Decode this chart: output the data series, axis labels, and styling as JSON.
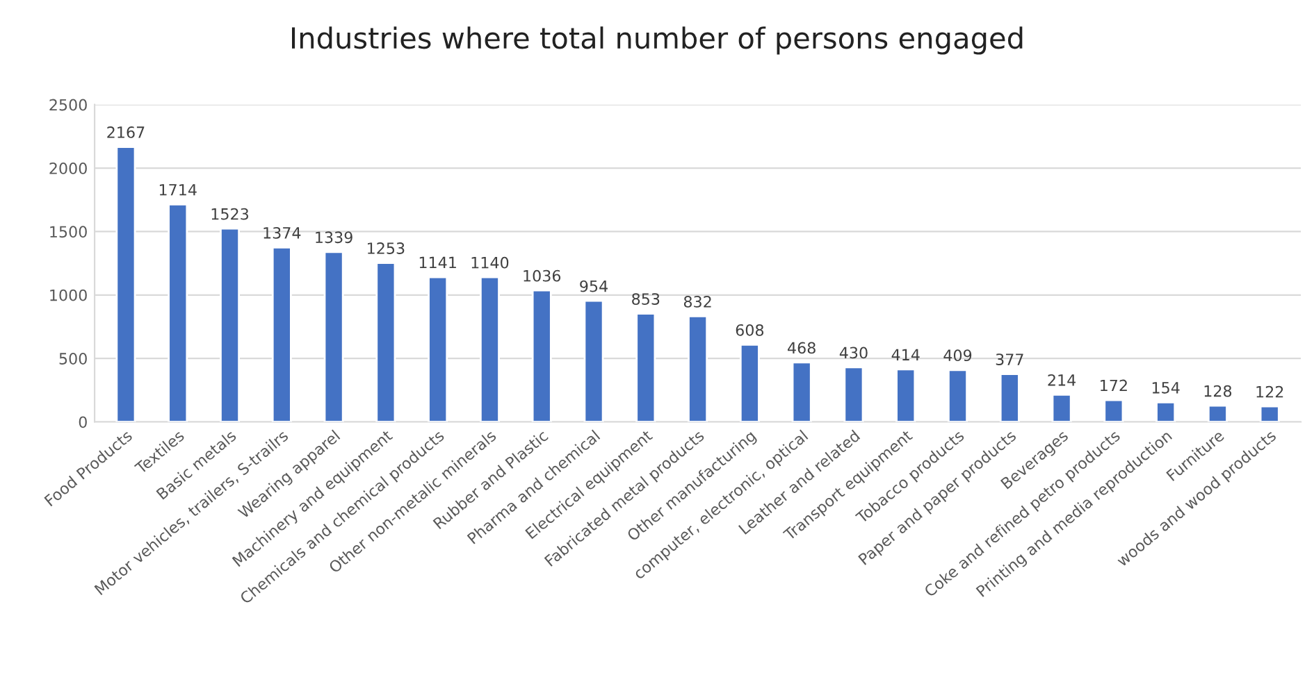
{
  "chart_data": {
    "type": "bar",
    "title": "Industries where total number of persons engaged",
    "categories": [
      "Food Products",
      "Textiles",
      "Basic metals",
      "Motor vehicles, trailers, S-trailrs",
      "Wearing apparel",
      "Machinery and equipment",
      "Chemicals and chemical products",
      "Other non-metalic minerals",
      "Rubber and Plastic",
      "Pharma and chemical",
      "Electrical equipment",
      "Fabricated metal products",
      "Other manufacturing",
      "computer, electronic, optical",
      "Leather and related",
      "Transport equipment",
      "Tobacco products",
      "Paper and paper products",
      "Beverages",
      "Coke and refined petro products",
      "Printing and media reproduction",
      "Furniture",
      "woods and wood products"
    ],
    "values": [
      2167,
      1714,
      1523,
      1374,
      1339,
      1253,
      1141,
      1140,
      1036,
      954,
      853,
      832,
      608,
      468,
      430,
      414,
      409,
      377,
      214,
      172,
      154,
      128,
      122
    ],
    "color": "#4472c4",
    "ylim": [
      0,
      2500
    ],
    "yticks": [
      0,
      500,
      1000,
      1500,
      2000,
      2500
    ],
    "grid": "y",
    "data_labels": true
  }
}
